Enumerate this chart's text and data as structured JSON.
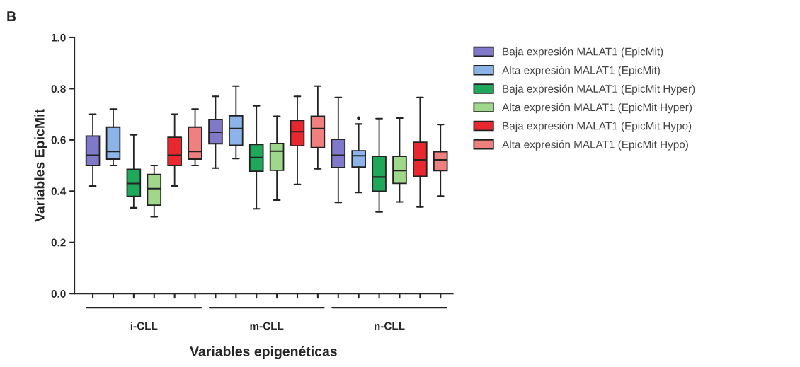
{
  "chart_data": {
    "type": "box",
    "title": "B",
    "xlabel": "Variables epigenéticas",
    "ylabel": "Variables EpicMit",
    "categories": [
      "i-CLL",
      "m-CLL",
      "n-CLL"
    ],
    "ylim": [
      0,
      1.0
    ],
    "yticks": [
      {
        "value": 0,
        "label": "0.0"
      },
      0.2,
      0.4,
      0.6,
      0.8,
      {
        "value": 1.0,
        "label": "1.0"
      }
    ],
    "grid": false,
    "legend": "right",
    "series": [
      {
        "name": "Baja expresión MALAT1 (EpicMit)",
        "color": "#8079c9",
        "boxes": [
          {
            "low": 0.42,
            "q1": 0.5,
            "median": 0.54,
            "q3": 0.615,
            "high": 0.7
          },
          {
            "low": 0.49,
            "q1": 0.585,
            "median": 0.63,
            "q3": 0.68,
            "high": 0.77
          },
          {
            "low": 0.356,
            "q1": 0.492,
            "median": 0.54,
            "q3": 0.602,
            "high": 0.766
          }
        ]
      },
      {
        "name": "Alta expresión MALAT1 (EpicMit)",
        "color": "#8db4e8",
        "boxes": [
          {
            "low": 0.5,
            "q1": 0.525,
            "median": 0.555,
            "q3": 0.65,
            "high": 0.72
          },
          {
            "low": 0.527,
            "q1": 0.579,
            "median": 0.644,
            "q3": 0.694,
            "high": 0.81
          },
          {
            "low": 0.395,
            "q1": 0.494,
            "median": 0.538,
            "q3": 0.558,
            "high": 0.662,
            "outliers": [
              0.685
            ]
          }
        ]
      },
      {
        "name": "Baja expresión MALAT1 (EpicMit Hyper)",
        "color": "#1fa85a",
        "boxes": [
          {
            "low": 0.335,
            "q1": 0.38,
            "median": 0.43,
            "q3": 0.485,
            "high": 0.62
          },
          {
            "low": 0.331,
            "q1": 0.478,
            "median": 0.531,
            "q3": 0.582,
            "high": 0.733
          },
          {
            "low": 0.319,
            "q1": 0.4,
            "median": 0.455,
            "q3": 0.536,
            "high": 0.683
          }
        ]
      },
      {
        "name": "Alta expresión MALAT1 (EpicMit Hyper)",
        "color": "#9fd88a",
        "boxes": [
          {
            "low": 0.3,
            "q1": 0.345,
            "median": 0.41,
            "q3": 0.465,
            "high": 0.5
          },
          {
            "low": 0.365,
            "q1": 0.481,
            "median": 0.556,
            "q3": 0.586,
            "high": 0.692
          },
          {
            "low": 0.358,
            "q1": 0.43,
            "median": 0.48,
            "q3": 0.536,
            "high": 0.685
          }
        ]
      },
      {
        "name": "Baja expresión MALAT1 (EpicMit Hypo)",
        "color": "#e8282e",
        "boxes": [
          {
            "low": 0.42,
            "q1": 0.5,
            "median": 0.54,
            "q3": 0.61,
            "high": 0.7
          },
          {
            "low": 0.426,
            "q1": 0.577,
            "median": 0.632,
            "q3": 0.676,
            "high": 0.77
          },
          {
            "low": 0.338,
            "q1": 0.458,
            "median": 0.522,
            "q3": 0.591,
            "high": 0.766
          }
        ]
      },
      {
        "name": "Alta expresión MALAT1 (EpicMit Hypo)",
        "color": "#f08080",
        "boxes": [
          {
            "low": 0.5,
            "q1": 0.525,
            "median": 0.555,
            "q3": 0.65,
            "high": 0.72
          },
          {
            "low": 0.487,
            "q1": 0.57,
            "median": 0.644,
            "q3": 0.692,
            "high": 0.81
          },
          {
            "low": 0.381,
            "q1": 0.48,
            "median": 0.522,
            "q3": 0.554,
            "high": 0.66
          }
        ]
      }
    ]
  }
}
